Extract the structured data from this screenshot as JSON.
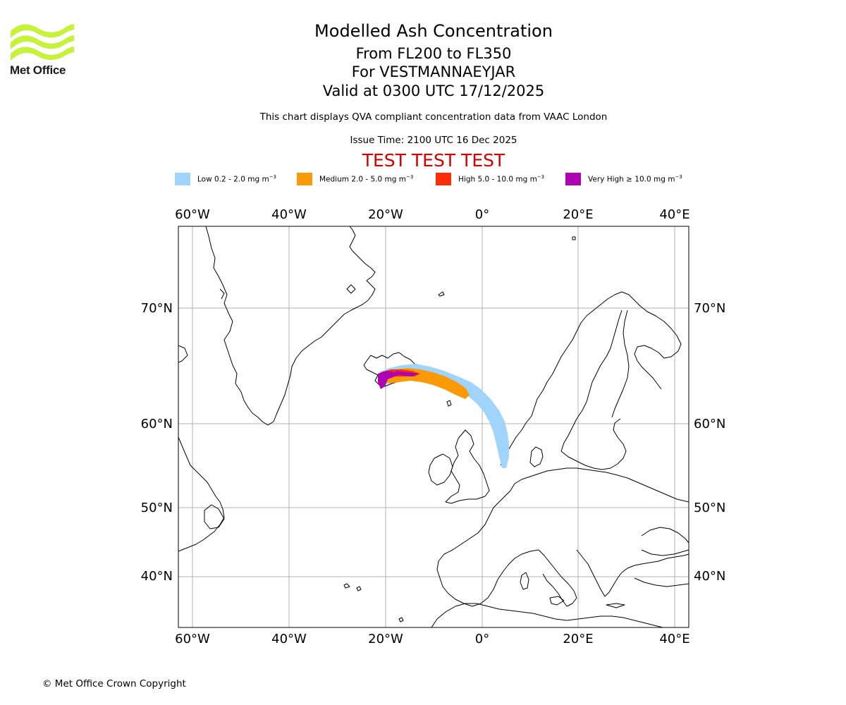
{
  "branding": {
    "logo_text": "Met Office",
    "logo_color": "#c7f23a"
  },
  "header": {
    "title": "Modelled Ash Concentration",
    "flight_levels": "From FL200 to FL350",
    "volcano": "For VESTMANNAEYJAR",
    "valid_time": "Valid at 0300 UTC 17/12/2025",
    "description": "This chart displays QVA compliant concentration data from VAAC London",
    "issue_time": "Issue Time: 2100 UTC 16 Dec 2025",
    "test_banner": "TEST TEST TEST",
    "test_banner_color": "#d40000"
  },
  "legend": {
    "items": [
      {
        "label": "Low 0.2 - 2.0 mg m",
        "sup": "−3",
        "color": "#a1d4fb"
      },
      {
        "label": "Medium 2.0 - 5.0 mg m",
        "sup": "−3",
        "color": "#fb9a08"
      },
      {
        "label": "High 5.0 - 10.0 mg m",
        "sup": "−3",
        "color": "#fc2e08"
      },
      {
        "label": "Very High  ≥  10.0 mg m",
        "sup": "−3",
        "color": "#ad03b2"
      }
    ]
  },
  "map": {
    "lon_labels": [
      "60°W",
      "40°W",
      "20°W",
      "0°",
      "20°E",
      "40°E"
    ],
    "lat_labels": [
      "70°N",
      "60°N",
      "50°N",
      "40°N"
    ]
  },
  "footer": {
    "copyright": "© Met Office Crown Copyright"
  }
}
